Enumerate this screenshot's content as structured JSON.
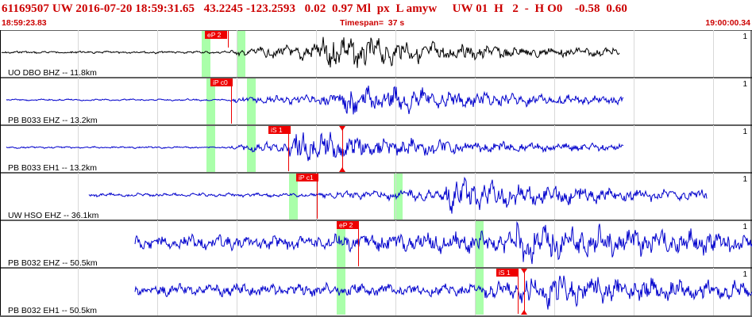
{
  "header": {
    "title": "61169507 UW 2016-07-20 18:59:31.65   43.2245 -123.2593   0.02  0.97 Ml  px  L amyw     UW 01  H   2  -  H O0    -0.58  0.60"
  },
  "timebar": {
    "start": "18:59:23.83",
    "timespan": "Timespan=  37 s",
    "end": "19:00:00.34"
  },
  "colors": {
    "header_text": "#cc0000",
    "trace": "#0000cc",
    "trace_first": "#000000",
    "pick": "#ee0000",
    "window": "#aaffaa",
    "divider": "#000000"
  },
  "panels": [
    {
      "label": "UO DBO BHZ -- 11.8km",
      "scale": "1",
      "color": "trace_first",
      "picks": [
        {
          "text": "eP 2"
        }
      ]
    },
    {
      "label": "PB B033 EHZ -- 13.2km",
      "scale": "1",
      "color": "trace",
      "picks": [
        {
          "text": "iP c0"
        }
      ]
    },
    {
      "label": "PB B033 EH1 -- 13.2km",
      "scale": "1",
      "color": "trace",
      "picks": [
        {
          "text": "iS 1"
        }
      ]
    },
    {
      "label": "UW HSO EHZ -- 36.1km",
      "scale": "1",
      "color": "trace",
      "picks": [
        {
          "text": "iP c1"
        }
      ]
    },
    {
      "label": "PB B032 EHZ -- 50.5km",
      "scale": "1",
      "color": "trace",
      "picks": [
        {
          "text": "eP 2"
        }
      ]
    },
    {
      "label": "PB B032 EH1 -- 50.5km",
      "scale": "1",
      "color": "trace",
      "picks": [
        {
          "text": "iS 1"
        }
      ]
    }
  ]
}
